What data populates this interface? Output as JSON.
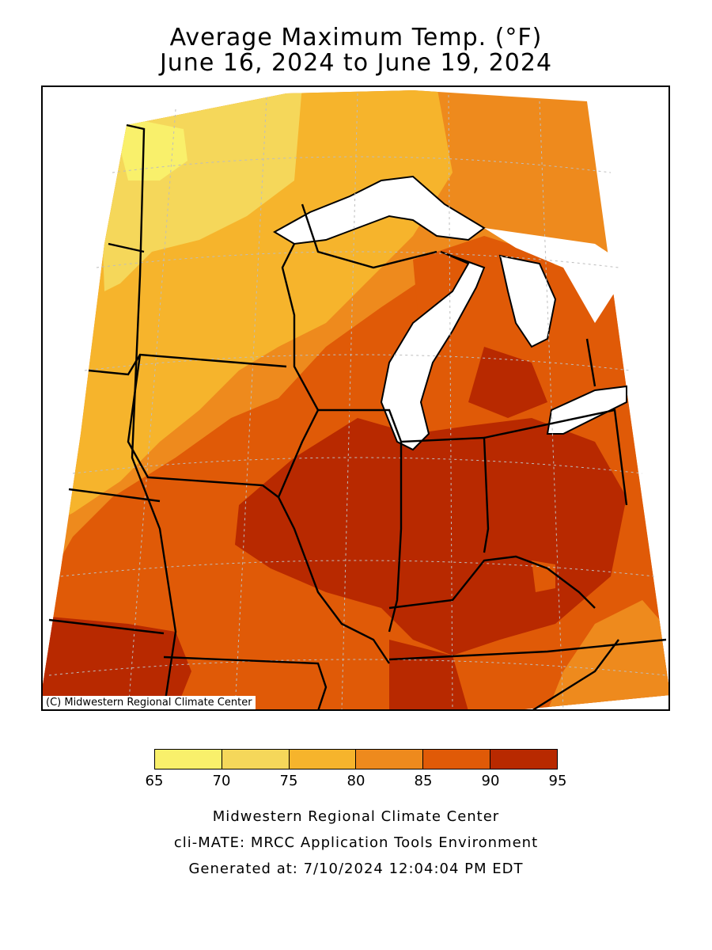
{
  "title": {
    "line1": "Average Maximum Temp. (°F)",
    "line2": "June 16, 2024 to June 19, 2024"
  },
  "map": {
    "credit": "(C) Midwestern Regional Climate Center",
    "colors": {
      "land_65_70": "#f9f06b",
      "land_70_75": "#f5d75a",
      "land_75_80": "#f6b42c",
      "land_80_85": "#ee8a1d",
      "land_85_90": "#e05a07",
      "land_90_95": "#b82900",
      "water": "#ffffff",
      "border": "#000000",
      "grid": "#bdbdbd"
    }
  },
  "legend": {
    "bins": [
      {
        "color": "#f9f06b"
      },
      {
        "color": "#f5d75a"
      },
      {
        "color": "#f6b42c"
      },
      {
        "color": "#ee8a1d"
      },
      {
        "color": "#e05a07"
      },
      {
        "color": "#b82900"
      }
    ],
    "ticks": [
      "65",
      "70",
      "75",
      "80",
      "85",
      "90",
      "95"
    ]
  },
  "footer": {
    "line1": "Midwestern Regional Climate Center",
    "line2": "cli-MATE: MRCC Application Tools Environment",
    "line3": "Generated at: 7/10/2024 12:04:04 PM EDT"
  }
}
